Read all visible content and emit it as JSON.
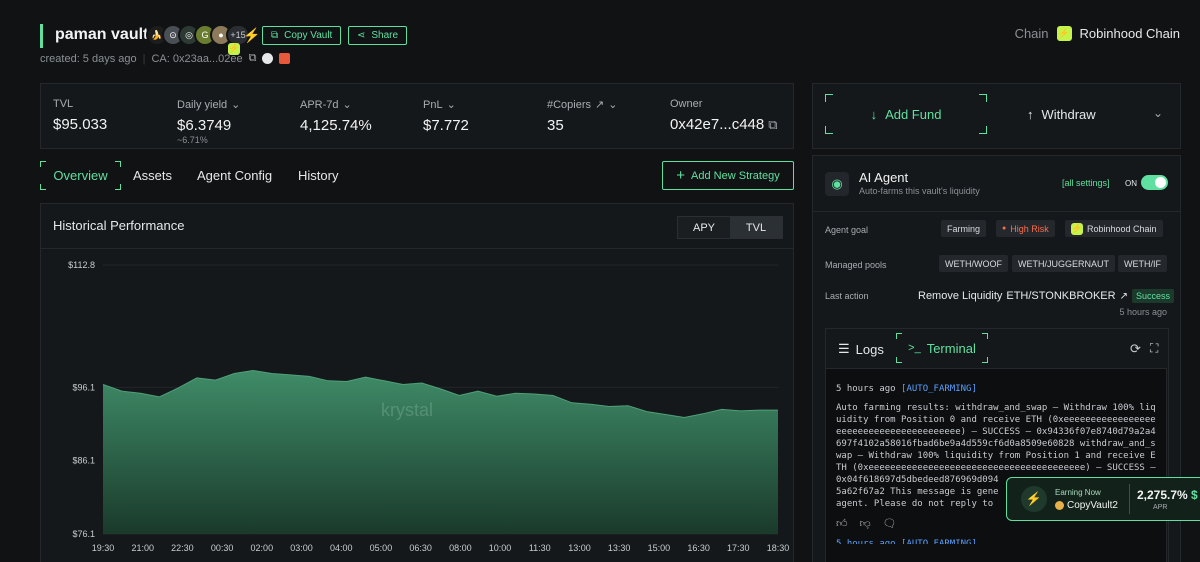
{
  "header": {
    "vault_name": "paman vault",
    "avatar_more": "+15",
    "copy_vault": "Copy Vault",
    "share": "Share",
    "created": "created: 5 days ago",
    "ca": "CA: 0x23aa...02ee",
    "chain_label": "Chain",
    "chain_name": "Robinhood Chain"
  },
  "stats": {
    "tvl_label": "TVL",
    "tvl_value": "$95.033",
    "yield_label": "Daily yield",
    "yield_value": "$6.3749",
    "yield_sub": "~6.71%",
    "apr_label": "APR-7d",
    "apr_value": "4,125.74%",
    "pnl_label": "PnL",
    "pnl_value": "$7.772",
    "copiers_label": "#Copiers",
    "copiers_value": "35",
    "owner_label": "Owner",
    "owner_value": "0x42e7...c448"
  },
  "tabs": [
    "Overview",
    "Assets",
    "Agent Config",
    "History"
  ],
  "add_strategy": "Add New Strategy",
  "chart_panel": {
    "title": "Historical Performance",
    "toggle": [
      "APY",
      "TVL"
    ],
    "watermark": "krystal"
  },
  "chart_data": {
    "type": "area",
    "title": "Historical Performance",
    "series": [
      {
        "values": [
          96.5,
          95.6,
          95.3,
          94.8,
          96.0,
          97.4,
          97.1,
          98.0,
          98.4,
          98.0,
          97.8,
          97.6,
          97.0,
          96.9,
          97.5,
          97.0,
          96.5,
          96.7,
          95.9,
          95.0,
          95.6,
          94.9,
          95.3,
          95.2,
          95.0,
          94.0,
          93.8,
          93.5,
          93.6,
          92.8,
          92.4,
          92.0,
          92.5,
          93.1,
          92.9,
          93.0,
          93.0
        ]
      }
    ],
    "x_ticks": [
      "19:30",
      "21:00",
      "22:30",
      "00:30",
      "02:00",
      "03:00",
      "04:00",
      "05:00",
      "06:30",
      "08:00",
      "10:00",
      "11:30",
      "13:00",
      "13:30",
      "15:00",
      "16:30",
      "17:30",
      "18:30"
    ],
    "y_ticks": [
      "$112.8",
      "$96.1",
      "$86.1",
      "$76.1"
    ],
    "ylim": [
      76.1,
      112.8
    ],
    "grid": true
  },
  "fund": {
    "add_fund": "Add Fund",
    "withdraw": "Withdraw"
  },
  "agent": {
    "title": "AI Agent",
    "desc": "Auto-farms this vault's liquidity",
    "settings": "[all settings]",
    "on": "ON",
    "goal_label": "Agent goal",
    "goal_chips": [
      "Farming",
      "High Risk",
      "Robinhood Chain"
    ],
    "pools_label": "Managed pools",
    "pools": [
      "WETH/WOOF",
      "WETH/JUGGERNAUT",
      "WETH/IF"
    ],
    "last_action_label": "Last action",
    "last_action": "Remove Liquidity",
    "last_action_pair": "ETH/STONKBROKER",
    "last_action_status": "Success",
    "last_action_time": "5 hours ago",
    "logs_tab": "Logs",
    "terminal_tab": "Terminal",
    "log_time": "5 hours ago",
    "log_tag": "[AUTO_FARMING]",
    "log_text": "Auto farming results: withdraw_and_swap – Withdraw 100% liquidity from Position 0 and receive ETH (0xeeeeeeeeeeeeeeeeeeeeeeeeeeeeeeeeeeeeeeee) – SUCCESS – 0x94336f07e8740d79a2a4697f4102a58016fbad6be9a4d559cf6d0a8509e60828 withdraw_and_swap – Withdraw 100% liquidity from Position 1 and receive ETH (0xeeeeeeeeeeeeeeeeeeeeeeeeeeeeeeeeeeeeeeee) – SUCCESS – 0x04f618697d5dbedeed876969d094",
    "log_text2": "5a62f67a2 This message is gene",
    "log_text3": "agent. Please do not reply to",
    "log_next": "5 hours ago [AUTO_FARMING]"
  },
  "earning": {
    "label": "Earning Now",
    "vault": "CopyVault2",
    "apr_value": "2,275.7%",
    "apr_label": "APR",
    "extra": "$"
  },
  "colors": {
    "accent": "#5fe0a0",
    "bg": "#101214",
    "panel": "#15181a",
    "risk": "#ff6b4a",
    "chain": "#c6f34a"
  }
}
